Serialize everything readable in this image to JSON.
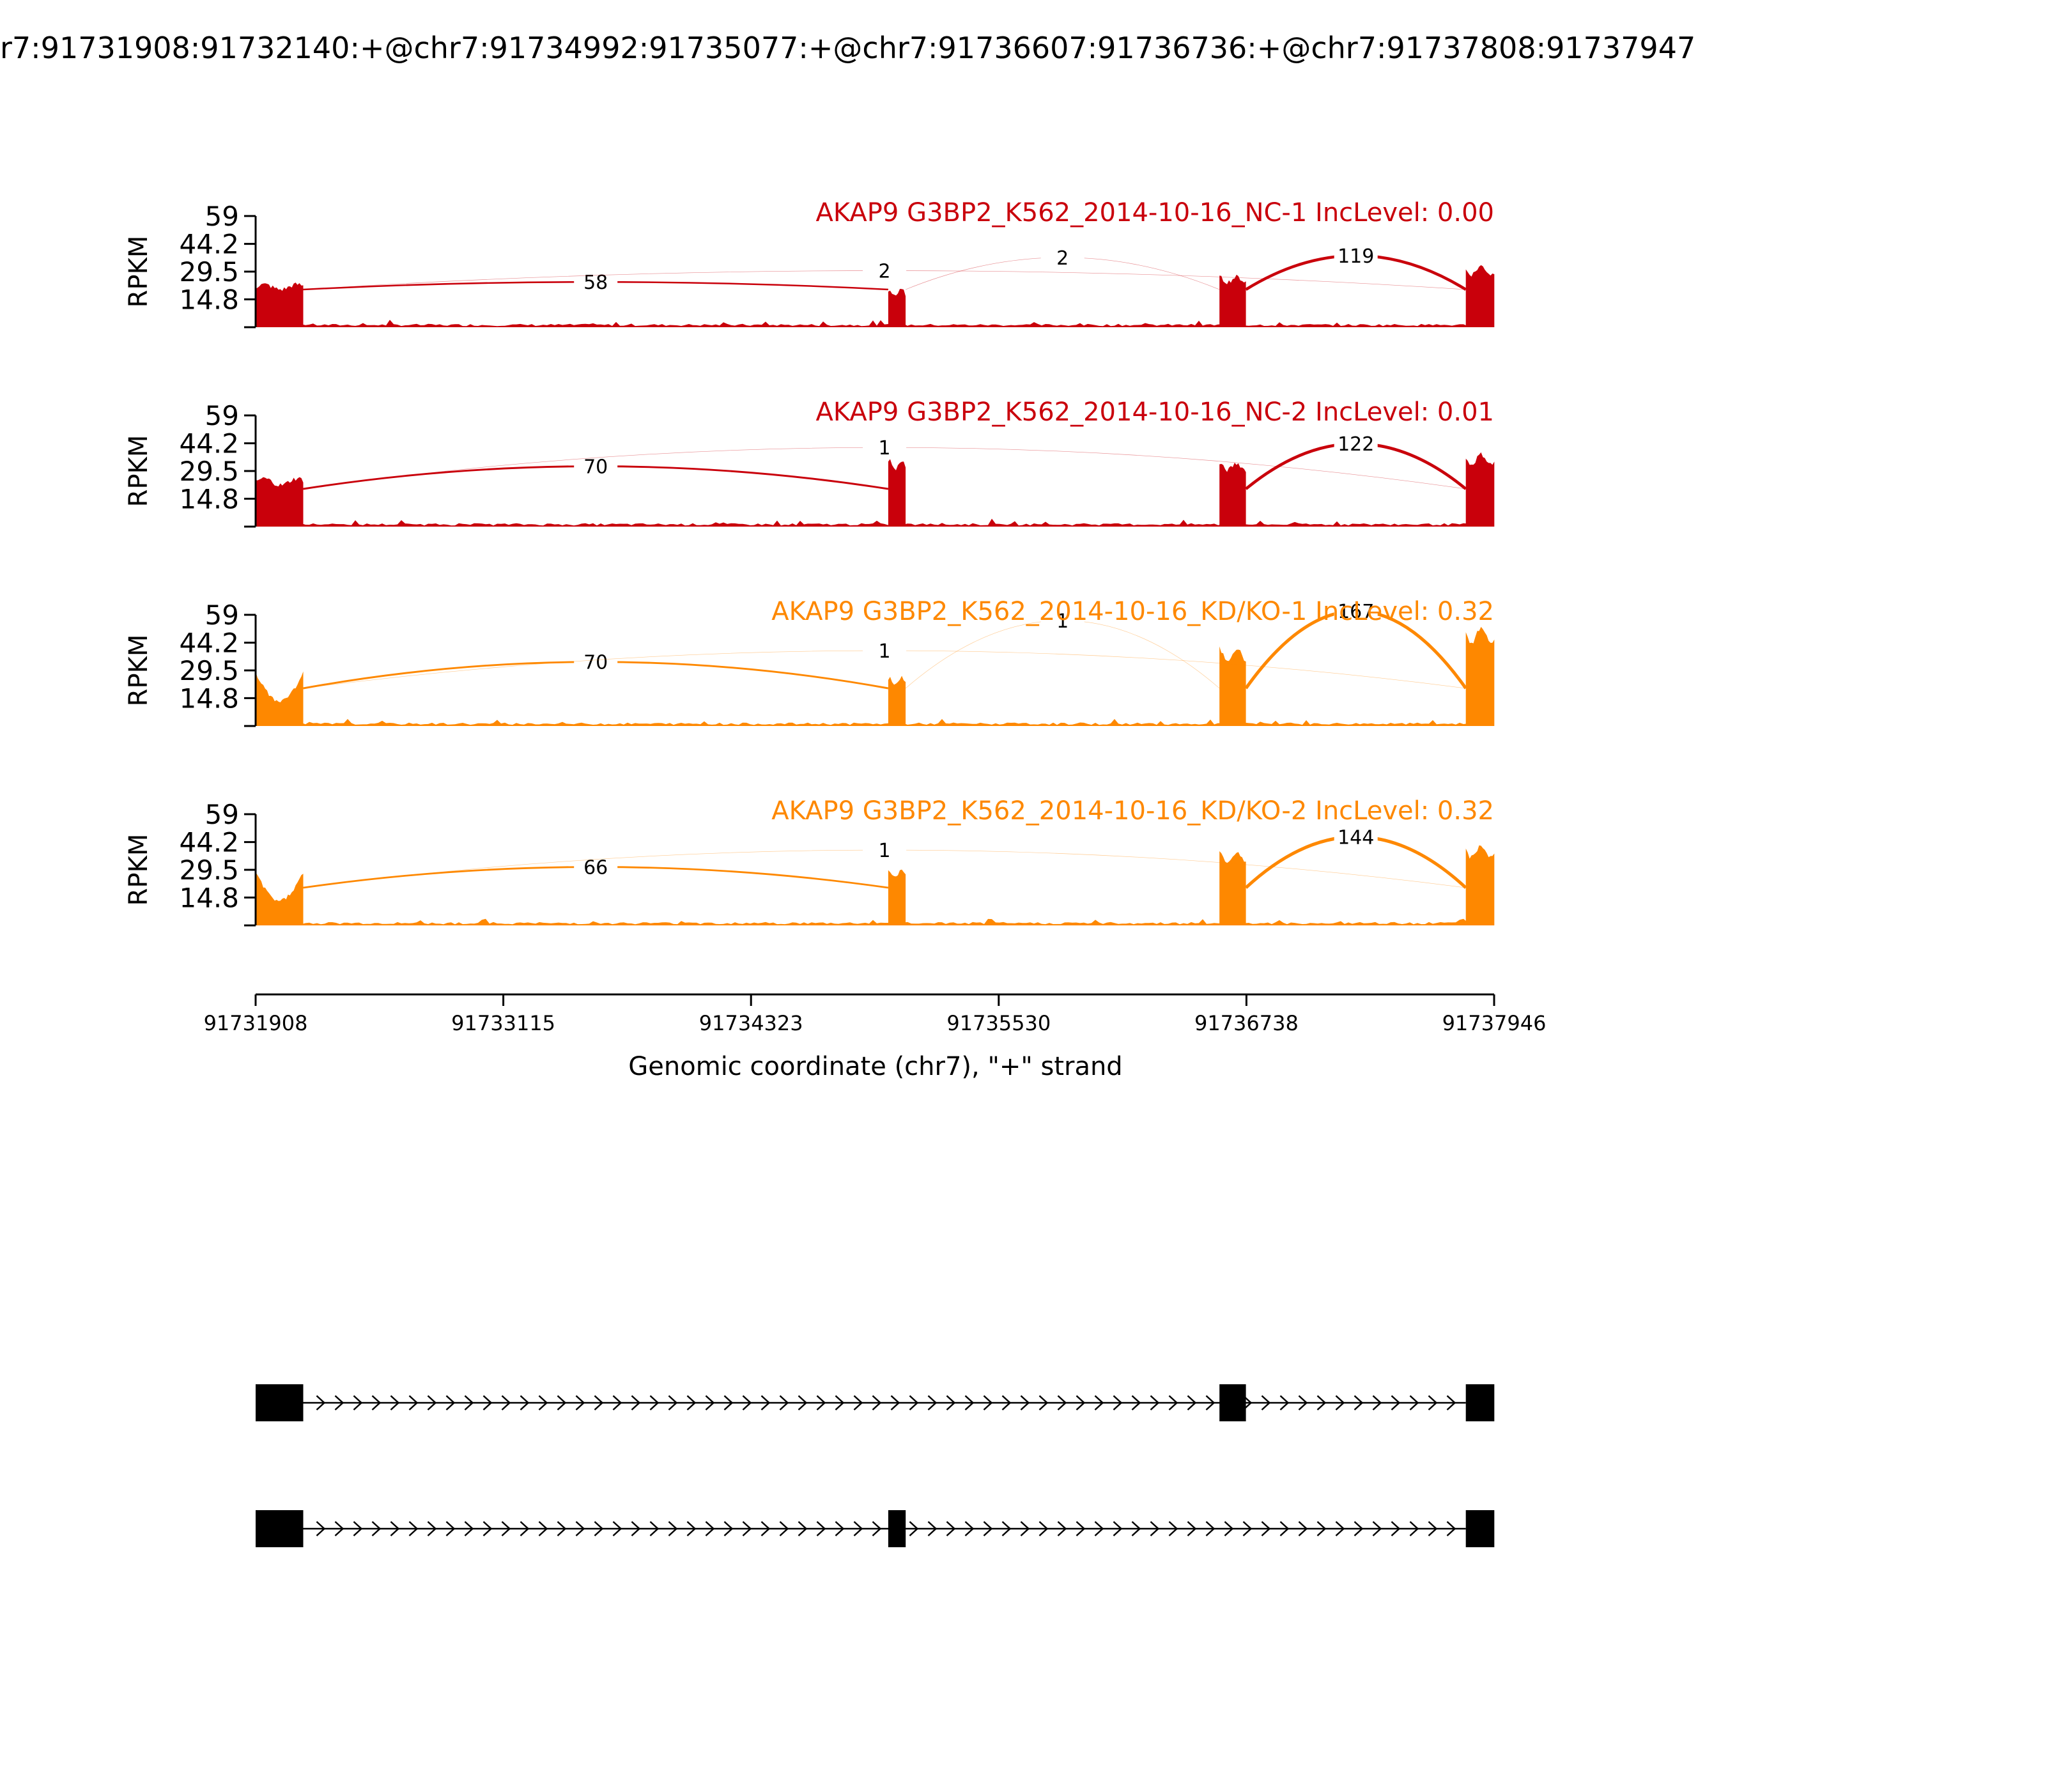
{
  "title": "r7:91731908:91732140:+@chr7:91734992:91735077:+@chr7:91736607:91736736:+@chr7:91737808:91737947",
  "colors": {
    "nc": "#c9000b",
    "kd": "#fe8800",
    "axis": "#000000",
    "background": "#ffffff"
  },
  "chart_data": {
    "type": "area",
    "plot_kind": "sashimi",
    "xlim": [
      91731908,
      91737946
    ],
    "xticks": [
      "91731908",
      "91733115",
      "91734323",
      "91735530",
      "91736738",
      "91737946"
    ],
    "xlabel": "Genomic coordinate (chr7), \"+\" strand",
    "ylabel": "RPKM",
    "ylim": [
      0,
      59
    ],
    "yticks": [
      "14.8",
      "29.5",
      "44.2",
      "59"
    ],
    "exons": [
      {
        "start": 91731908,
        "end": 91732140
      },
      {
        "start": 91734992,
        "end": 91735077
      },
      {
        "start": 91736607,
        "end": 91736736
      },
      {
        "start": 91737808,
        "end": 91737947
      }
    ],
    "panels": [
      {
        "label": "AKAP9 G3BP2_K562_2014-10-16_NC-1 IncLevel: 0.00",
        "group": "nc",
        "coverage": [
          {
            "start": 91731908,
            "end": 91732140,
            "level": 20,
            "peak": 23
          },
          {
            "start": 91734992,
            "end": 91735077,
            "level": 17,
            "peak": 20
          },
          {
            "start": 91736607,
            "end": 91736736,
            "level": 24,
            "peak": 27
          },
          {
            "start": 91737808,
            "end": 91737947,
            "level": 28,
            "peak": 33
          }
        ],
        "junctions": [
          {
            "from": 91732140,
            "to": 91734992,
            "count": "58",
            "height": 24
          },
          {
            "from": 91732140,
            "to": 91737808,
            "count": "2",
            "height": 30
          },
          {
            "from": 91735077,
            "to": 91736607,
            "count": "2",
            "height": 37
          },
          {
            "from": 91736736,
            "to": 91737808,
            "count": "119",
            "height": 38
          }
        ]
      },
      {
        "label": "AKAP9 G3BP2_K562_2014-10-16_NC-2 IncLevel: 0.01",
        "group": "nc",
        "coverage": [
          {
            "start": 91731908,
            "end": 91732140,
            "level": 22,
            "peak": 26
          },
          {
            "start": 91734992,
            "end": 91735077,
            "level": 30,
            "peak": 36
          },
          {
            "start": 91736607,
            "end": 91736736,
            "level": 30,
            "peak": 34
          },
          {
            "start": 91737808,
            "end": 91737947,
            "level": 33,
            "peak": 39
          }
        ],
        "junctions": [
          {
            "from": 91732140,
            "to": 91734992,
            "count": "70",
            "height": 32
          },
          {
            "from": 91732140,
            "to": 91737808,
            "count": "1",
            "height": 42
          },
          {
            "from": 91736736,
            "to": 91737808,
            "count": "122",
            "height": 44
          }
        ]
      },
      {
        "label": "AKAP9 G3BP2_K562_2014-10-16_KD/KO-1 IncLevel: 0.32",
        "group": "kd",
        "coverage": [
          {
            "start": 91731908,
            "end": 91732140,
            "level": 14,
            "peak": 28
          },
          {
            "start": 91734992,
            "end": 91735077,
            "level": 22,
            "peak": 26
          },
          {
            "start": 91736607,
            "end": 91736736,
            "level": 35,
            "peak": 42
          },
          {
            "start": 91737808,
            "end": 91737947,
            "level": 44,
            "peak": 53
          }
        ],
        "junctions": [
          {
            "from": 91732140,
            "to": 91734992,
            "count": "70",
            "height": 34
          },
          {
            "from": 91732140,
            "to": 91737808,
            "count": "1",
            "height": 40
          },
          {
            "from": 91735077,
            "to": 91736607,
            "count": "1",
            "height": 56
          },
          {
            "from": 91736736,
            "to": 91737808,
            "count": "167",
            "height": 61
          }
        ]
      },
      {
        "label": "AKAP9 G3BP2_K562_2014-10-16_KD/KO-2 IncLevel: 0.32",
        "group": "kd",
        "coverage": [
          {
            "start": 91731908,
            "end": 91732140,
            "level": 14,
            "peak": 28
          },
          {
            "start": 91734992,
            "end": 91735077,
            "level": 25,
            "peak": 30
          },
          {
            "start": 91736607,
            "end": 91736736,
            "level": 33,
            "peak": 40
          },
          {
            "start": 91737808,
            "end": 91737947,
            "level": 36,
            "peak": 43
          }
        ],
        "junctions": [
          {
            "from": 91732140,
            "to": 91734992,
            "count": "66",
            "height": 31
          },
          {
            "from": 91732140,
            "to": 91737808,
            "count": "1",
            "height": 40
          },
          {
            "from": 91736736,
            "to": 91737808,
            "count": "144",
            "height": 47
          }
        ]
      }
    ],
    "isoforms": [
      {
        "exons": [
          0,
          2,
          3
        ]
      },
      {
        "exons": [
          0,
          1,
          3
        ]
      }
    ]
  }
}
